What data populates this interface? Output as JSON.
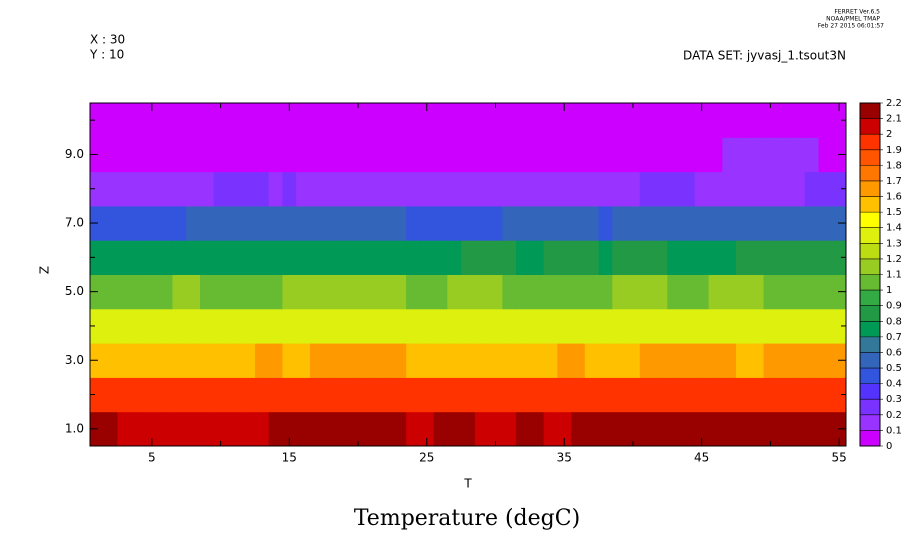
{
  "chart_data": {
    "type": "heatmap",
    "title": "Temperature (degC)",
    "xlabel": "T",
    "ylabel": "Z",
    "header": {
      "x_info": "X : 30",
      "y_info": "Y : 10",
      "dataset": "DATA SET: jyvasj_1.tsout3N",
      "version": "FERRET Ver.6.5",
      "org": "NOAA/PMEL TMAP",
      "timestamp": "Feb 27 2015 06:01:57"
    },
    "x": [
      1,
      2,
      3,
      4,
      5,
      6,
      7,
      8,
      9,
      10,
      11,
      12,
      13,
      14,
      15,
      16,
      17,
      18,
      19,
      20,
      21,
      22,
      23,
      24,
      25,
      26,
      27,
      28,
      29,
      30,
      31,
      32,
      33,
      34,
      35,
      36,
      37,
      38,
      39,
      40,
      41,
      42,
      43,
      44,
      45,
      46,
      47,
      48,
      49,
      50,
      51,
      52,
      53,
      54,
      55
    ],
    "y": [
      1,
      2,
      3,
      4,
      5,
      6,
      7,
      8,
      9,
      10
    ],
    "z": [
      [
        2.15,
        2.15,
        2.05,
        2.05,
        2.05,
        2.05,
        2.05,
        2.05,
        2.05,
        2.05,
        2.05,
        2.05,
        2.05,
        2.15,
        2.15,
        2.15,
        2.15,
        2.15,
        2.15,
        2.15,
        2.15,
        2.15,
        2.15,
        2.05,
        2.05,
        2.15,
        2.15,
        2.15,
        2.05,
        2.05,
        2.05,
        2.15,
        2.15,
        2.05,
        2.05,
        2.15,
        2.15,
        2.15,
        2.15,
        2.15,
        2.15,
        2.15,
        2.15,
        2.15,
        2.15,
        2.15,
        2.15,
        2.15,
        2.15,
        2.15,
        2.15,
        2.15,
        2.15,
        2.15,
        2.15
      ],
      [
        1.95,
        1.95,
        1.95,
        1.95,
        1.95,
        1.95,
        1.95,
        1.95,
        1.95,
        1.95,
        1.95,
        1.95,
        1.95,
        1.95,
        1.95,
        1.95,
        1.95,
        1.95,
        1.95,
        1.95,
        1.95,
        1.95,
        1.95,
        1.95,
        1.95,
        1.95,
        1.95,
        1.95,
        1.95,
        1.95,
        1.95,
        1.95,
        1.95,
        1.95,
        1.95,
        1.95,
        1.95,
        1.95,
        1.95,
        1.95,
        1.95,
        1.95,
        1.95,
        1.95,
        1.95,
        1.95,
        1.95,
        1.95,
        1.95,
        1.95,
        1.95,
        1.95,
        1.95,
        1.95,
        1.95
      ],
      [
        1.55,
        1.55,
        1.55,
        1.55,
        1.55,
        1.55,
        1.55,
        1.55,
        1.55,
        1.55,
        1.55,
        1.55,
        1.65,
        1.65,
        1.55,
        1.55,
        1.65,
        1.65,
        1.65,
        1.65,
        1.65,
        1.65,
        1.65,
        1.55,
        1.55,
        1.55,
        1.55,
        1.55,
        1.55,
        1.55,
        1.55,
        1.55,
        1.55,
        1.55,
        1.65,
        1.65,
        1.55,
        1.55,
        1.55,
        1.55,
        1.65,
        1.65,
        1.65,
        1.65,
        1.65,
        1.65,
        1.65,
        1.55,
        1.55,
        1.65,
        1.65,
        1.65,
        1.65,
        1.65,
        1.65
      ],
      [
        1.35,
        1.35,
        1.35,
        1.35,
        1.35,
        1.35,
        1.35,
        1.35,
        1.35,
        1.35,
        1.35,
        1.35,
        1.35,
        1.35,
        1.35,
        1.35,
        1.35,
        1.35,
        1.35,
        1.35,
        1.35,
        1.35,
        1.35,
        1.35,
        1.35,
        1.35,
        1.35,
        1.35,
        1.35,
        1.35,
        1.35,
        1.35,
        1.35,
        1.35,
        1.35,
        1.35,
        1.35,
        1.35,
        1.35,
        1.35,
        1.35,
        1.35,
        1.35,
        1.35,
        1.35,
        1.35,
        1.35,
        1.35,
        1.35,
        1.35,
        1.35,
        1.35,
        1.35,
        1.35,
        1.35
      ],
      [
        1.05,
        1.05,
        1.05,
        1.05,
        1.05,
        1.05,
        1.15,
        1.15,
        1.05,
        1.05,
        1.05,
        1.05,
        1.05,
        1.05,
        1.15,
        1.15,
        1.15,
        1.15,
        1.15,
        1.15,
        1.15,
        1.15,
        1.15,
        1.05,
        1.05,
        1.05,
        1.15,
        1.15,
        1.15,
        1.15,
        1.05,
        1.05,
        1.05,
        1.05,
        1.05,
        1.05,
        1.05,
        1.05,
        1.15,
        1.15,
        1.15,
        1.15,
        1.05,
        1.05,
        1.05,
        1.15,
        1.15,
        1.15,
        1.15,
        1.05,
        1.05,
        1.05,
        1.05,
        1.05,
        1.05
      ],
      [
        0.75,
        0.75,
        0.75,
        0.75,
        0.75,
        0.75,
        0.75,
        0.75,
        0.75,
        0.75,
        0.75,
        0.75,
        0.75,
        0.75,
        0.75,
        0.75,
        0.75,
        0.75,
        0.75,
        0.75,
        0.75,
        0.75,
        0.75,
        0.75,
        0.75,
        0.75,
        0.75,
        0.85,
        0.85,
        0.85,
        0.85,
        0.75,
        0.75,
        0.85,
        0.85,
        0.85,
        0.85,
        0.75,
        0.85,
        0.85,
        0.85,
        0.85,
        0.75,
        0.75,
        0.75,
        0.75,
        0.75,
        0.85,
        0.85,
        0.85,
        0.85,
        0.85,
        0.85,
        0.85,
        0.85
      ],
      [
        0.45,
        0.45,
        0.45,
        0.45,
        0.45,
        0.45,
        0.45,
        0.55,
        0.55,
        0.55,
        0.55,
        0.55,
        0.55,
        0.55,
        0.55,
        0.55,
        0.55,
        0.55,
        0.55,
        0.55,
        0.55,
        0.55,
        0.55,
        0.45,
        0.45,
        0.45,
        0.45,
        0.45,
        0.45,
        0.45,
        0.55,
        0.55,
        0.55,
        0.55,
        0.55,
        0.55,
        0.55,
        0.45,
        0.55,
        0.55,
        0.55,
        0.55,
        0.55,
        0.55,
        0.55,
        0.55,
        0.55,
        0.55,
        0.55,
        0.55,
        0.55,
        0.55,
        0.55,
        0.55,
        0.55
      ],
      [
        0.15,
        0.15,
        0.15,
        0.15,
        0.15,
        0.15,
        0.15,
        0.15,
        0.15,
        0.25,
        0.25,
        0.25,
        0.25,
        0.15,
        0.25,
        0.15,
        0.15,
        0.15,
        0.15,
        0.15,
        0.15,
        0.15,
        0.15,
        0.15,
        0.15,
        0.15,
        0.15,
        0.15,
        0.15,
        0.15,
        0.15,
        0.15,
        0.15,
        0.15,
        0.15,
        0.15,
        0.15,
        0.15,
        0.15,
        0.15,
        0.25,
        0.25,
        0.25,
        0.25,
        0.15,
        0.15,
        0.15,
        0.15,
        0.15,
        0.15,
        0.15,
        0.15,
        0.25,
        0.25,
        0.25
      ],
      [
        0.05,
        0.05,
        0.05,
        0.05,
        0.05,
        0.05,
        0.05,
        0.05,
        0.05,
        0.05,
        0.05,
        0.05,
        0.05,
        0.05,
        0.05,
        0.05,
        0.05,
        0.05,
        0.05,
        0.05,
        0.05,
        0.05,
        0.05,
        0.05,
        0.05,
        0.05,
        0.05,
        0.05,
        0.05,
        0.05,
        0.05,
        0.05,
        0.05,
        0.05,
        0.05,
        0.05,
        0.05,
        0.05,
        0.05,
        0.05,
        0.05,
        0.05,
        0.05,
        0.05,
        0.05,
        0.05,
        0.15,
        0.15,
        0.15,
        0.15,
        0.15,
        0.15,
        0.15,
        0.05,
        0.05
      ],
      [
        0.05,
        0.05,
        0.05,
        0.05,
        0.05,
        0.05,
        0.05,
        0.05,
        0.05,
        0.05,
        0.05,
        0.05,
        0.05,
        0.05,
        0.05,
        0.05,
        0.05,
        0.05,
        0.05,
        0.05,
        0.05,
        0.05,
        0.05,
        0.05,
        0.05,
        0.05,
        0.05,
        0.05,
        0.05,
        0.05,
        0.05,
        0.05,
        0.05,
        0.05,
        0.05,
        0.05,
        0.05,
        0.05,
        0.05,
        0.05,
        0.05,
        0.05,
        0.05,
        0.05,
        0.05,
        0.05,
        0.05,
        0.05,
        0.05,
        0.05,
        0.05,
        0.05,
        0.05,
        0.05,
        0.05
      ]
    ],
    "xlim": [
      0.5,
      55.5
    ],
    "ylim": [
      0.5,
      10.5
    ],
    "xticks": [
      5,
      15,
      25,
      35,
      45,
      55
    ],
    "xminor_ticks": [
      10,
      20,
      30,
      40,
      50
    ],
    "yticks": [
      {
        "value": 1,
        "label": "1.0"
      },
      {
        "value": 3,
        "label": "3.0"
      },
      {
        "value": 5,
        "label": "5.0"
      },
      {
        "value": 7,
        "label": "7.0"
      },
      {
        "value": 9,
        "label": "9.0"
      }
    ],
    "yminor_ticks": [
      2,
      4,
      6,
      8,
      10
    ],
    "levels": [
      0,
      0.1,
      0.2,
      0.3,
      0.4,
      0.5,
      0.6,
      0.7,
      0.8,
      0.9,
      1,
      1.1,
      1.2,
      1.3,
      1.4,
      1.5,
      1.6,
      1.7,
      1.8,
      1.9,
      2,
      2.1,
      2.2
    ],
    "colors": [
      "#cc00ff",
      "#9933ff",
      "#7a33ff",
      "#5533ff",
      "#3355dd",
      "#3366bb",
      "#337799",
      "#009955",
      "#229944",
      "#33aa44",
      "#66bb33",
      "#99cc22",
      "#bbdd11",
      "#ddf00e",
      "#ffff00",
      "#ffc000",
      "#ff9900",
      "#ff7700",
      "#ff5500",
      "#ff3300",
      "#cc0000",
      "#990000"
    ]
  }
}
